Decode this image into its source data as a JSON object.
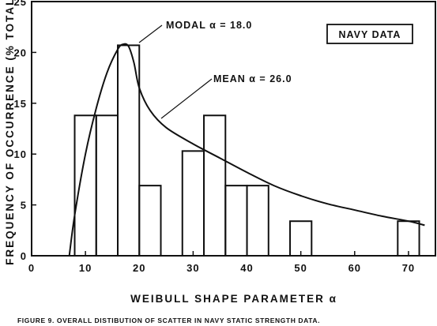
{
  "chart_data": {
    "type": "bar",
    "xlabel": "WEIBULL SHAPE PARAMETER α",
    "ylabel": "FREQUENCY OF OCCURRENCE (% TOTAL)",
    "xlim": [
      0,
      75
    ],
    "ylim": [
      0,
      25
    ],
    "x_ticks": [
      "0",
      "10",
      "20",
      "30",
      "40",
      "50",
      "60",
      "70"
    ],
    "y_ticks": [
      "0",
      "5",
      "10",
      "15",
      "20",
      "25"
    ],
    "bins": [
      {
        "x0": 8,
        "x1": 12,
        "value": 13.8
      },
      {
        "x0": 12,
        "x1": 16,
        "value": 13.8
      },
      {
        "x0": 16,
        "x1": 20,
        "value": 20.7
      },
      {
        "x0": 20,
        "x1": 24,
        "value": 6.9
      },
      {
        "x0": 28,
        "x1": 32,
        "value": 10.3
      },
      {
        "x0": 32,
        "x1": 36,
        "value": 13.8
      },
      {
        "x0": 36,
        "x1": 40,
        "value": 6.9
      },
      {
        "x0": 40,
        "x1": 44,
        "value": 6.9
      },
      {
        "x0": 48,
        "x1": 52,
        "value": 3.4
      },
      {
        "x0": 68,
        "x1": 72,
        "value": 3.4
      }
    ],
    "fitted_curve": {
      "x": [
        7,
        8,
        10,
        12,
        14,
        16,
        17,
        18,
        19,
        20,
        22,
        25,
        30,
        35,
        40,
        45,
        50,
        55,
        60,
        65,
        70,
        73
      ],
      "y": [
        0,
        4,
        10,
        14.5,
        18,
        20.3,
        20.8,
        20.6,
        19,
        16.5,
        14.3,
        12.6,
        11.0,
        9.6,
        8.2,
        6.9,
        5.9,
        5.1,
        4.5,
        3.9,
        3.4,
        3.0
      ]
    },
    "annotations": {
      "modal": "MODAL α = 18.0",
      "mean": "MEAN α = 26.0",
      "legend_box": "NAVY DATA"
    }
  },
  "caption": "FIGURE 9.   OVERALL DISTIBUTION OF SCATTER IN NAVY STATIC STRENGTH DATA."
}
